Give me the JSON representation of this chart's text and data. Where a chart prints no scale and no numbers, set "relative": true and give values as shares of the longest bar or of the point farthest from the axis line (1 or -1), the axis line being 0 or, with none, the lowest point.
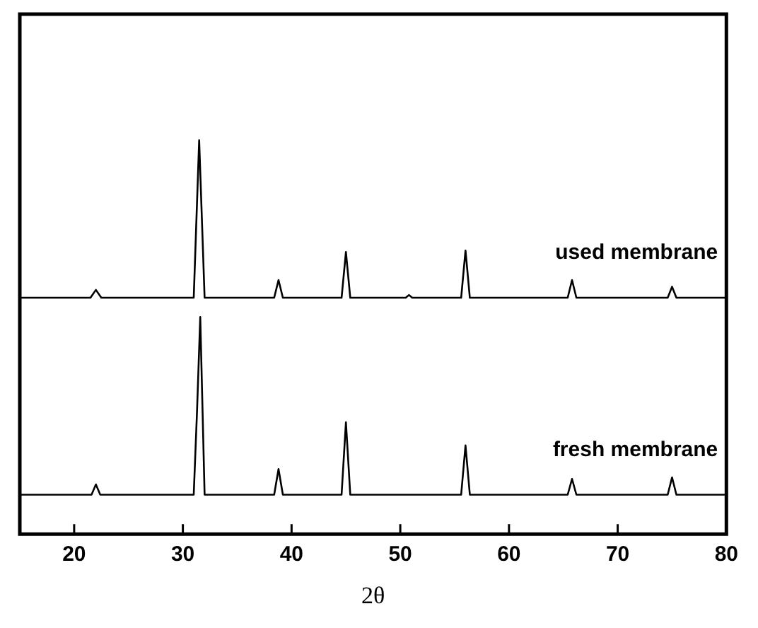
{
  "chart_data": {
    "type": "line",
    "xlabel": "2θ",
    "relative": true,
    "xlim": [
      15,
      80
    ],
    "xticks": [
      20,
      30,
      40,
      50,
      60,
      70,
      80
    ],
    "tick_labels": "x",
    "grid": false,
    "legend": false,
    "marker": "none",
    "line_style": "solid",
    "series": [
      {
        "name": "used membrane",
        "color": "#000000",
        "x": [
          15,
          21.5,
          22,
          22.5,
          31,
          31.5,
          32,
          38.4,
          38.8,
          39.2,
          44.6,
          45,
          45.4,
          50.5,
          50.8,
          51.1,
          55.6,
          56,
          56.4,
          65.4,
          65.8,
          66.2,
          70.2,
          70.5,
          70.8,
          74.6,
          75,
          75.4,
          80
        ],
        "values": [
          0.6,
          0.6,
          0.62,
          0.6,
          0.6,
          1.0,
          0.6,
          0.6,
          0.645,
          0.6,
          0.6,
          0.716,
          0.6,
          0.6,
          0.607,
          0.6,
          0.6,
          0.72,
          0.6,
          0.6,
          0.645,
          0.6,
          0.6,
          0.6,
          0.6,
          0.6,
          0.628,
          0.6,
          0.6
        ]
      },
      {
        "name": "fresh membrane",
        "color": "#000000",
        "x": [
          15,
          21.6,
          22,
          22.4,
          31,
          31.3,
          31.6,
          32,
          38.4,
          38.8,
          39.2,
          44.6,
          45,
          45.4,
          55.6,
          56,
          56.4,
          65.4,
          65.8,
          66.2,
          74.6,
          75,
          75.4,
          80
        ],
        "values": [
          0.1,
          0.1,
          0.126,
          0.1,
          0.1,
          0.31,
          0.551,
          0.1,
          0.1,
          0.165,
          0.1,
          0.1,
          0.284,
          0.1,
          0.1,
          0.225,
          0.1,
          0.1,
          0.14,
          0.1,
          0.1,
          0.144,
          0.1,
          0.1
        ]
      }
    ]
  }
}
